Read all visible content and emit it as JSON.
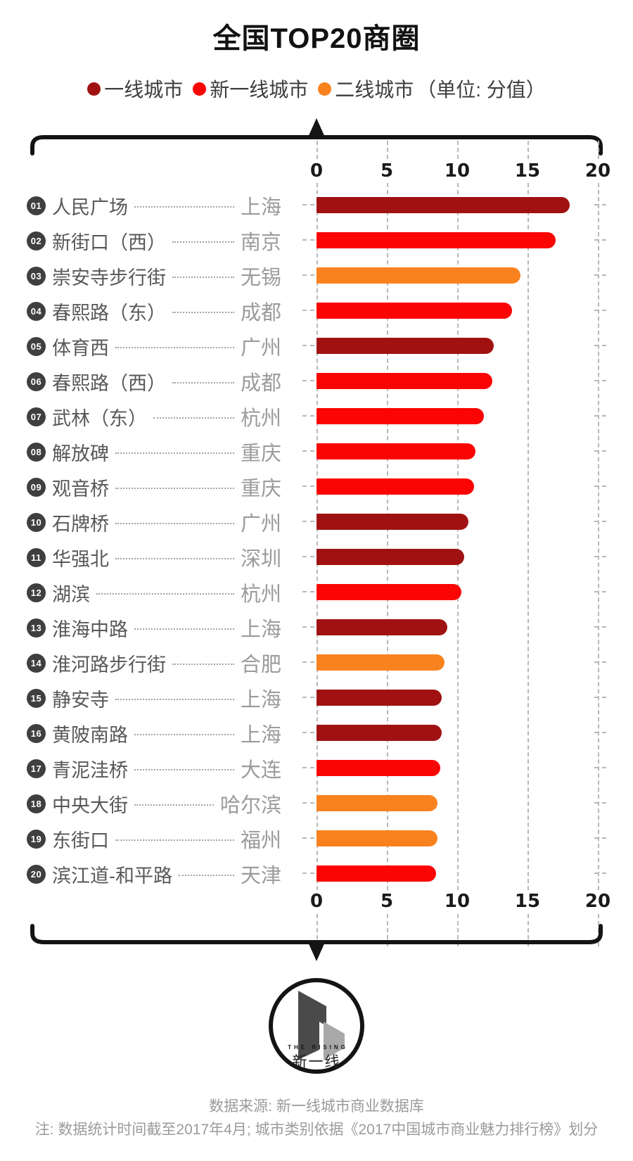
{
  "title": "全国TOP20商圈",
  "legend": {
    "items": [
      {
        "label": "一线城市",
        "tier": "一线城市"
      },
      {
        "label": "新一线城市",
        "tier": "新一线城市"
      },
      {
        "label": "二线城市",
        "tier": "二线城市"
      }
    ],
    "unit_label": "（单位: 分值）"
  },
  "tier_colors": {
    "一线城市": "#a01212",
    "新一线城市": "#fa0404",
    "二线城市": "#f9821f"
  },
  "chart_data": {
    "type": "bar",
    "orientation": "horizontal",
    "title": "全国TOP20商圈",
    "value_unit": "分值",
    "xlim": [
      0,
      20
    ],
    "ticks": [
      0,
      5,
      10,
      15,
      20
    ],
    "grid": true,
    "legend_position": "top",
    "rows": [
      {
        "rank": "01",
        "district": "人民广场",
        "city": "上海",
        "tier": "一线城市",
        "value": 18.0
      },
      {
        "rank": "02",
        "district": "新街口（西）",
        "city": "南京",
        "tier": "新一线城市",
        "value": 17.0
      },
      {
        "rank": "03",
        "district": "崇安寺步行街",
        "city": "无锡",
        "tier": "二线城市",
        "value": 14.5
      },
      {
        "rank": "04",
        "district": "春熙路（东）",
        "city": "成都",
        "tier": "新一线城市",
        "value": 13.9
      },
      {
        "rank": "05",
        "district": "体育西",
        "city": "广州",
        "tier": "一线城市",
        "value": 12.6
      },
      {
        "rank": "06",
        "district": "春熙路（西）",
        "city": "成都",
        "tier": "新一线城市",
        "value": 12.5
      },
      {
        "rank": "07",
        "district": "武林（东）",
        "city": "杭州",
        "tier": "新一线城市",
        "value": 11.9
      },
      {
        "rank": "08",
        "district": "解放碑",
        "city": "重庆",
        "tier": "新一线城市",
        "value": 11.3
      },
      {
        "rank": "09",
        "district": "观音桥",
        "city": "重庆",
        "tier": "新一线城市",
        "value": 11.2
      },
      {
        "rank": "10",
        "district": "石牌桥",
        "city": "广州",
        "tier": "一线城市",
        "value": 10.8
      },
      {
        "rank": "11",
        "district": "华强北",
        "city": "深圳",
        "tier": "一线城市",
        "value": 10.5
      },
      {
        "rank": "12",
        "district": "湖滨",
        "city": "杭州",
        "tier": "新一线城市",
        "value": 10.3
      },
      {
        "rank": "13",
        "district": "淮海中路",
        "city": "上海",
        "tier": "一线城市",
        "value": 9.3
      },
      {
        "rank": "14",
        "district": "淮河路步行街",
        "city": "合肥",
        "tier": "二线城市",
        "value": 9.1
      },
      {
        "rank": "15",
        "district": "静安寺",
        "city": "上海",
        "tier": "一线城市",
        "value": 8.9
      },
      {
        "rank": "16",
        "district": "黄陂南路",
        "city": "上海",
        "tier": "一线城市",
        "value": 8.9
      },
      {
        "rank": "17",
        "district": "青泥洼桥",
        "city": "大连",
        "tier": "新一线城市",
        "value": 8.8
      },
      {
        "rank": "18",
        "district": "中央大街",
        "city": "哈尔滨",
        "tier": "二线城市",
        "value": 8.6
      },
      {
        "rank": "19",
        "district": "东街口",
        "city": "福州",
        "tier": "二线城市",
        "value": 8.6
      },
      {
        "rank": "20",
        "district": "滨江道-和平路",
        "city": "天津",
        "tier": "新一线城市",
        "value": 8.5
      }
    ]
  },
  "logo": {
    "text_en": "THE RISING",
    "text_cn": "新一线"
  },
  "footer": {
    "source": "数据来源: 新一线城市商业数据库",
    "note": "注: 数据统计时间截至2017年4月; 城市类别依据《2017中国城市商业魅力排行榜》划分"
  },
  "badge_color": "#3f3f3f"
}
